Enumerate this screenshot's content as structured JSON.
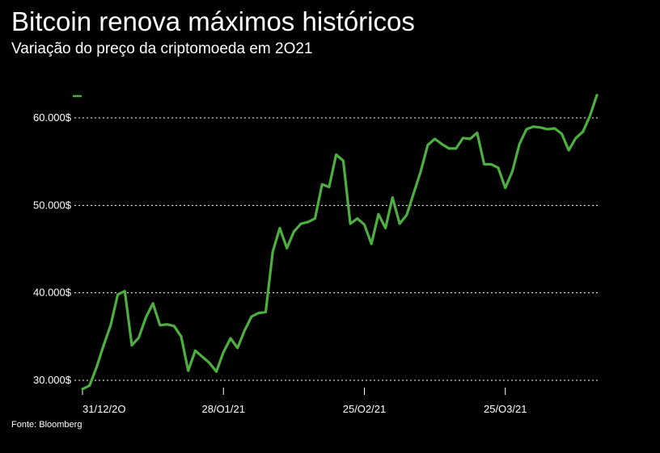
{
  "header": {
    "title": "Bitcoin renova máximos históricos",
    "subtitle": "Variação do preço da criptomoeda em 2O21"
  },
  "footer": {
    "source": "Fonte: Bloomberg"
  },
  "colors": {
    "background": "#000000",
    "line": "#4caf3f",
    "grid": "#ffffff",
    "text": "#ffffff"
  },
  "chart_data": {
    "type": "line",
    "title": "Bitcoin renova máximos históricos",
    "subtitle": "Variação do preço da criptomoeda em 2O21",
    "xlabel": "",
    "ylabel": "",
    "ylim": [
      29500,
      62500
    ],
    "y_ticks": [
      {
        "value": 30000,
        "label": "30.000$"
      },
      {
        "value": 40000,
        "label": "40.000$"
      },
      {
        "value": 50000,
        "label": "50.000$"
      },
      {
        "value": 60000,
        "label": "60.000$"
      }
    ],
    "x_ticks": [
      {
        "index": 0,
        "label": "31/12/2O"
      },
      {
        "index": 20,
        "label": "28/O1/21"
      },
      {
        "index": 40,
        "label": "25/O2/21"
      },
      {
        "index": 60,
        "label": "25/O3/21"
      }
    ],
    "grid": "horizontal dotted",
    "legend": "none",
    "series": [
      {
        "color": "#4caf3f",
        "values": [
          29000,
          29400,
          31500,
          34000,
          36300,
          39800,
          40200,
          34000,
          34900,
          37200,
          38800,
          36300,
          36400,
          36200,
          35000,
          31100,
          33400,
          32700,
          32000,
          31000,
          33200,
          34800,
          33700,
          35700,
          37300,
          37700,
          37800,
          44700,
          47400,
          45100,
          47000,
          47900,
          48100,
          48500,
          52400,
          52100,
          55800,
          55100,
          47900,
          48500,
          47800,
          45600,
          49000,
          47400,
          50900,
          47900,
          48900,
          51400,
          53900,
          56900,
          57600,
          57000,
          56500,
          56500,
          57700,
          57600,
          58300,
          54700,
          54700,
          54300,
          52000,
          53900,
          57000,
          58700,
          59000,
          58900,
          58700,
          58800,
          58200,
          56300,
          57700,
          58400,
          60200,
          62600
        ]
      }
    ]
  }
}
